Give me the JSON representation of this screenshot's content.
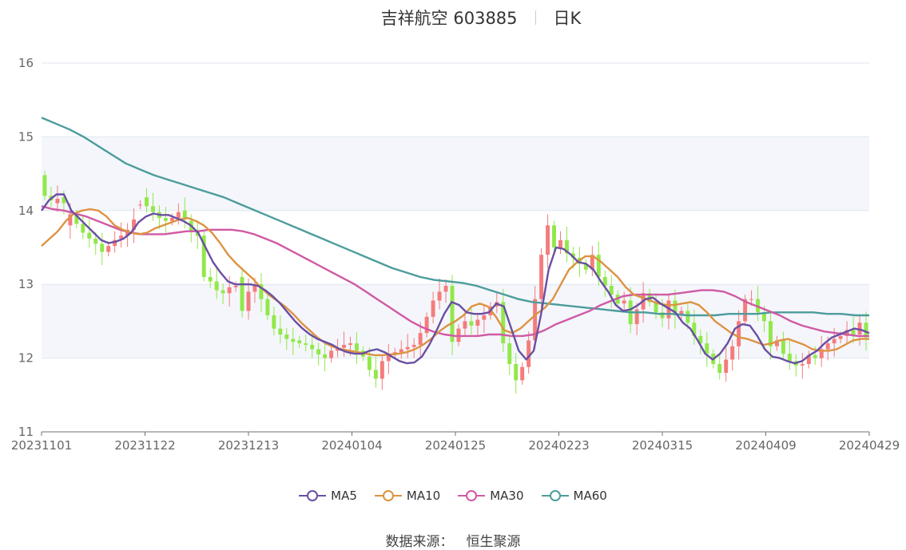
{
  "title": {
    "stock": "吉祥航空 603885",
    "period": "日K"
  },
  "source": {
    "label": "数据来源：",
    "value": "恒生聚源"
  },
  "colors": {
    "up": "#f47c7c",
    "down": "#91e84a",
    "MA5": "#6a4fa3",
    "MA10": "#dd9341",
    "MA30": "#d05aa4",
    "MA60": "#4c9c9c"
  },
  "chart_data": {
    "type": "candlestick",
    "ylim": [
      11,
      16
    ],
    "yticks": [
      "11",
      "12",
      "13",
      "14",
      "15",
      "16"
    ],
    "xticks": [
      "20231101",
      "20231122",
      "20231213",
      "20240104",
      "20240125",
      "20240223",
      "20240315",
      "20240409",
      "20240429"
    ],
    "legend": [
      "MA5",
      "MA10",
      "MA30",
      "MA60"
    ],
    "legend_position": "bottom",
    "candles_close": [
      14.2,
      14.14,
      14.16,
      14.1,
      13.95,
      13.82,
      13.7,
      13.62,
      13.55,
      13.44,
      13.52,
      13.6,
      13.66,
      13.74,
      13.88,
      14.08,
      14.06,
      13.98,
      13.9,
      13.86,
      13.9,
      13.98,
      13.88,
      13.72,
      13.66,
      13.1,
      13.04,
      12.92,
      12.88,
      12.96,
      12.98,
      12.64,
      12.9,
      13.0,
      12.8,
      12.58,
      12.4,
      12.32,
      12.26,
      12.22,
      12.2,
      12.18,
      12.12,
      12.05,
      12.0,
      12.1,
      12.14,
      12.18,
      12.2,
      12.1,
      12.02,
      11.84,
      11.72,
      11.96,
      12.04,
      12.08,
      12.12,
      12.15,
      12.18,
      12.34,
      12.56,
      12.78,
      12.9,
      12.98,
      12.22,
      12.4,
      12.5,
      12.44,
      12.52,
      12.58,
      12.7,
      12.76,
      12.2,
      11.92,
      11.7,
      11.88,
      12.24,
      12.8,
      13.4,
      13.8,
      13.5,
      13.6,
      13.42,
      13.36,
      13.28,
      13.2,
      13.4,
      13.1,
      12.98,
      12.86,
      12.74,
      12.78,
      12.46,
      12.66,
      12.88,
      12.76,
      12.62,
      12.54,
      12.78,
      12.58,
      12.64,
      12.48,
      12.3,
      12.2,
      12.06,
      11.92,
      11.8,
      11.98,
      12.16,
      12.5,
      12.8,
      12.8,
      12.62,
      12.5,
      12.16,
      12.24,
      12.06,
      11.96,
      11.9,
      11.92,
      12.04,
      12.0,
      12.12,
      12.2,
      12.26,
      12.3,
      12.38,
      12.32,
      12.48,
      12.28
    ],
    "candles_open": [
      14.48,
      14.2,
      14.1,
      14.18,
      13.8,
      13.95,
      13.82,
      13.7,
      13.62,
      13.55,
      13.44,
      13.52,
      13.62,
      13.66,
      13.74,
      14.08,
      14.18,
      14.06,
      13.98,
      13.9,
      13.86,
      13.9,
      14.0,
      13.86,
      13.72,
      13.66,
      13.1,
      13.04,
      12.92,
      12.88,
      12.96,
      13.1,
      12.64,
      12.9,
      13.0,
      12.8,
      12.58,
      12.4,
      12.32,
      12.26,
      12.24,
      12.2,
      12.18,
      12.12,
      12.05,
      12.0,
      12.1,
      12.14,
      12.18,
      12.2,
      12.1,
      12.02,
      11.84,
      11.72,
      11.96,
      12.04,
      12.08,
      12.12,
      12.15,
      12.18,
      12.34,
      12.56,
      12.78,
      12.9,
      12.98,
      12.22,
      12.4,
      12.5,
      12.44,
      12.52,
      12.58,
      12.7,
      12.76,
      12.2,
      11.92,
      11.7,
      11.88,
      12.24,
      12.8,
      13.4,
      13.8,
      13.5,
      13.6,
      13.42,
      13.36,
      13.28,
      13.2,
      13.4,
      13.1,
      12.98,
      12.86,
      12.74,
      12.78,
      12.46,
      12.66,
      12.88,
      12.76,
      12.62,
      12.54,
      12.78,
      12.58,
      12.64,
      12.48,
      12.3,
      12.2,
      12.06,
      11.92,
      11.8,
      11.98,
      12.16,
      12.5,
      12.8,
      12.8,
      12.62,
      12.5,
      12.16,
      12.24,
      12.06,
      11.96,
      11.9,
      11.92,
      12.04,
      12.0,
      12.12,
      12.2,
      12.26,
      12.3,
      12.38,
      12.32,
      12.48
    ],
    "ma5": [
      14.0,
      14.14,
      14.22,
      14.22,
      14.0,
      13.9,
      13.8,
      13.7,
      13.6,
      13.56,
      13.58,
      13.62,
      13.7,
      13.84,
      13.92,
      13.96,
      13.94,
      13.94,
      13.9,
      13.86,
      13.8,
      13.7,
      13.5,
      13.3,
      13.16,
      13.04,
      13.0,
      13.0,
      13.0,
      12.98,
      12.92,
      12.84,
      12.74,
      12.62,
      12.5,
      12.4,
      12.32,
      12.26,
      12.22,
      12.18,
      12.12,
      12.08,
      12.06,
      12.06,
      12.1,
      12.12,
      12.08,
      12.02,
      11.96,
      11.93,
      11.94,
      12.02,
      12.18,
      12.38,
      12.6,
      12.76,
      12.72,
      12.62,
      12.6,
      12.6,
      12.62,
      12.74,
      12.7,
      12.4,
      12.1,
      11.98,
      12.1,
      12.6,
      13.2,
      13.5,
      13.48,
      13.4,
      13.3,
      13.28,
      13.2,
      13.04,
      12.9,
      12.72,
      12.64,
      12.66,
      12.72,
      12.8,
      12.82,
      12.74,
      12.68,
      12.62,
      12.48,
      12.4,
      12.24,
      12.06,
      11.98,
      12.06,
      12.2,
      12.4,
      12.46,
      12.44,
      12.3,
      12.12,
      12.02,
      12.0,
      11.96,
      11.93,
      11.96,
      12.04,
      12.1,
      12.2,
      12.28,
      12.32,
      12.36,
      12.4,
      12.38,
      12.34
    ],
    "ma10": [
      13.52,
      13.62,
      13.72,
      13.86,
      13.96,
      14.0,
      14.02,
      14.0,
      13.92,
      13.8,
      13.74,
      13.7,
      13.68,
      13.7,
      13.76,
      13.8,
      13.84,
      13.88,
      13.9,
      13.86,
      13.8,
      13.7,
      13.56,
      13.4,
      13.28,
      13.18,
      13.08,
      12.96,
      12.86,
      12.78,
      12.7,
      12.6,
      12.48,
      12.38,
      12.28,
      12.2,
      12.15,
      12.12,
      12.1,
      12.08,
      12.06,
      12.04,
      12.04,
      12.05,
      12.06,
      12.08,
      12.12,
      12.18,
      12.26,
      12.36,
      12.44,
      12.5,
      12.58,
      12.7,
      12.74,
      12.7,
      12.56,
      12.38,
      12.34,
      12.4,
      12.5,
      12.6,
      12.68,
      12.8,
      13.0,
      13.2,
      13.3,
      13.38,
      13.38,
      13.3,
      13.2,
      13.1,
      12.96,
      12.86,
      12.82,
      12.78,
      12.74,
      12.72,
      12.72,
      12.74,
      12.76,
      12.72,
      12.62,
      12.5,
      12.42,
      12.34,
      12.28,
      12.26,
      12.22,
      12.18,
      12.2,
      12.24,
      12.26,
      12.22,
      12.18,
      12.12,
      12.1,
      12.1,
      12.12,
      12.18,
      12.24,
      12.26,
      12.26
    ],
    "ma30": [
      14.06,
      14.02,
      14.0,
      13.96,
      13.92,
      13.86,
      13.8,
      13.74,
      13.7,
      13.68,
      13.68,
      13.68,
      13.7,
      13.72,
      13.72,
      13.74,
      13.74,
      13.74,
      13.72,
      13.68,
      13.62,
      13.56,
      13.48,
      13.4,
      13.32,
      13.24,
      13.16,
      13.08,
      13.0,
      12.9,
      12.8,
      12.7,
      12.6,
      12.5,
      12.42,
      12.36,
      12.32,
      12.3,
      12.3,
      12.3,
      12.32,
      12.32,
      12.3,
      12.3,
      12.32,
      12.38,
      12.46,
      12.52,
      12.58,
      12.64,
      12.72,
      12.78,
      12.84,
      12.86,
      12.86,
      12.86,
      12.86,
      12.88,
      12.9,
      12.92,
      12.92,
      12.9,
      12.84,
      12.76,
      12.7,
      12.64,
      12.58,
      12.5,
      12.44,
      12.4,
      12.36,
      12.34,
      12.32,
      12.3,
      12.3
    ],
    "ma60": [
      15.26,
      15.18,
      15.1,
      15.0,
      14.88,
      14.76,
      14.64,
      14.56,
      14.48,
      14.42,
      14.36,
      14.3,
      14.24,
      14.18,
      14.1,
      14.02,
      13.94,
      13.86,
      13.78,
      13.7,
      13.62,
      13.54,
      13.46,
      13.38,
      13.3,
      13.22,
      13.16,
      13.1,
      13.06,
      13.04,
      13.02,
      12.98,
      12.92,
      12.86,
      12.8,
      12.76,
      12.74,
      12.72,
      12.7,
      12.68,
      12.66,
      12.64,
      12.62,
      12.62,
      12.6,
      12.6,
      12.58,
      12.58,
      12.58,
      12.6,
      12.6,
      12.6,
      12.62,
      12.62,
      12.62,
      12.62,
      12.6,
      12.6,
      12.58,
      12.58
    ]
  }
}
